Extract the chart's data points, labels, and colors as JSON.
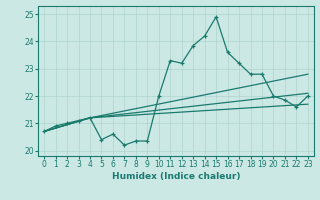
{
  "xlabel": "Humidex (Indice chaleur)",
  "ylabel": "",
  "xlim": [
    -0.5,
    23.5
  ],
  "ylim": [
    19.8,
    25.3
  ],
  "yticks": [
    20,
    21,
    22,
    23,
    24,
    25
  ],
  "xticks": [
    0,
    1,
    2,
    3,
    4,
    5,
    6,
    7,
    8,
    9,
    10,
    11,
    12,
    13,
    14,
    15,
    16,
    17,
    18,
    19,
    20,
    21,
    22,
    23
  ],
  "bg_color": "#cce8e4",
  "line_color": "#1a7a6e",
  "grid_color": "#aed4cf",
  "series": {
    "main": {
      "x": [
        0,
        1,
        2,
        3,
        4,
        5,
        6,
        7,
        8,
        9,
        10,
        11,
        12,
        13,
        14,
        15,
        16,
        17,
        18,
        19,
        20,
        21,
        22,
        23
      ],
      "y": [
        20.7,
        20.9,
        21.0,
        21.1,
        21.2,
        20.4,
        20.6,
        20.2,
        20.35,
        20.35,
        22.0,
        23.3,
        23.2,
        23.85,
        24.2,
        24.9,
        23.6,
        23.2,
        22.8,
        22.8,
        22.0,
        21.85,
        21.6,
        22.0
      ]
    },
    "upper": {
      "x": [
        0,
        4,
        23
      ],
      "y": [
        20.7,
        21.2,
        22.8
      ]
    },
    "middle_upper": {
      "x": [
        0,
        4,
        23
      ],
      "y": [
        20.7,
        21.2,
        22.1
      ]
    },
    "middle_lower": {
      "x": [
        0,
        4,
        23
      ],
      "y": [
        20.7,
        21.2,
        21.7
      ]
    }
  }
}
